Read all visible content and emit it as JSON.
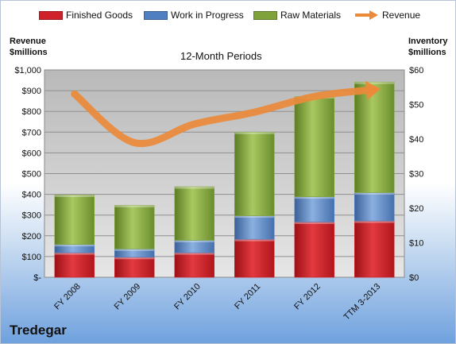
{
  "chart_data": {
    "type": "bar",
    "title": "12-Month Periods",
    "categories": [
      "FY 2008",
      "FY 2009",
      "FY 2010",
      "FY 2011",
      "FY 2012",
      "TTM 3-2013"
    ],
    "series": [
      {
        "name": "Finished Goods",
        "axis": "right",
        "stacked": true,
        "color": "#d0202a",
        "values": [
          7.1,
          5.8,
          7.1,
          11.0,
          16.0,
          16.3
        ]
      },
      {
        "name": "Work in Progress",
        "axis": "right",
        "stacked": true,
        "color": "#4f7fc1",
        "values": [
          2.4,
          2.4,
          3.6,
          6.8,
          7.3,
          8.2
        ]
      },
      {
        "name": "Raw Materials",
        "axis": "right",
        "stacked": true,
        "color": "#7fa33a",
        "values": [
          14.3,
          12.6,
          15.5,
          24.2,
          29.0,
          32.0
        ]
      },
      {
        "name": "Revenue",
        "axis": "left",
        "type": "line",
        "color": "#ec8a3a",
        "values": [
          884,
          649,
          739,
          796,
          872,
          905
        ]
      }
    ],
    "left_axis": {
      "label": "Revenue\n$millions",
      "min": 0,
      "max": 1000,
      "step": 100,
      "tick_labels": [
        "$-",
        "$100",
        "$200",
        "$300",
        "$400",
        "$500",
        "$600",
        "$700",
        "$800",
        "$900",
        "$1,000"
      ]
    },
    "right_axis": {
      "label": "Inventory\n$millions",
      "min": 0,
      "max": 60,
      "step": 10,
      "tick_labels": [
        "$0",
        "$10",
        "$20",
        "$30",
        "$40",
        "$50",
        "$60"
      ]
    },
    "grid": true,
    "legend_position": "top"
  },
  "company": "Tredegar"
}
